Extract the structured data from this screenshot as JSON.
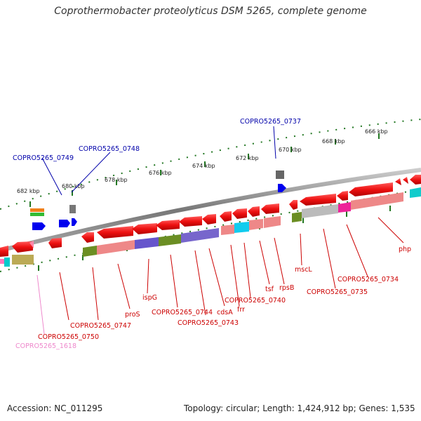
{
  "title": "Coprothermobacter proteolyticus DSM 5265, complete genome",
  "footer": {
    "accession": "Accession: NC_011295",
    "summary": "Topology: circular; Length: 1,424,912 bp; Genes: 1,535"
  },
  "scale_labels": [
    "682 kbp",
    "680 kbp",
    "678 kbp",
    "676 kbp",
    "674 kbp",
    "672 kbp",
    "670 kbp",
    "668 kbp",
    "666 kbp"
  ],
  "gene_labels": {
    "top": [
      "COPRO5265_0749",
      "COPRO5265_0748",
      "COPRO5265_0737"
    ],
    "bottom": [
      "COPRO5265_0750",
      "COPRO5265_1618",
      "COPRO5265_0747",
      "proS",
      "ispG",
      "COPRO5265_0744",
      "COPRO5265_0743",
      "cdsA",
      "frr",
      "COPRO5265_0740",
      "tsf",
      "rpsB",
      "mscL",
      "COPRO5265_0735",
      "COPRO5265_0734",
      "php"
    ]
  },
  "colors": {
    "cds": "#ee1111",
    "label_red": "#cc0000",
    "label_blue": "#0000aa",
    "label_pink": "#ee88cc",
    "scale": "#227722",
    "backbone": "#888888"
  }
}
